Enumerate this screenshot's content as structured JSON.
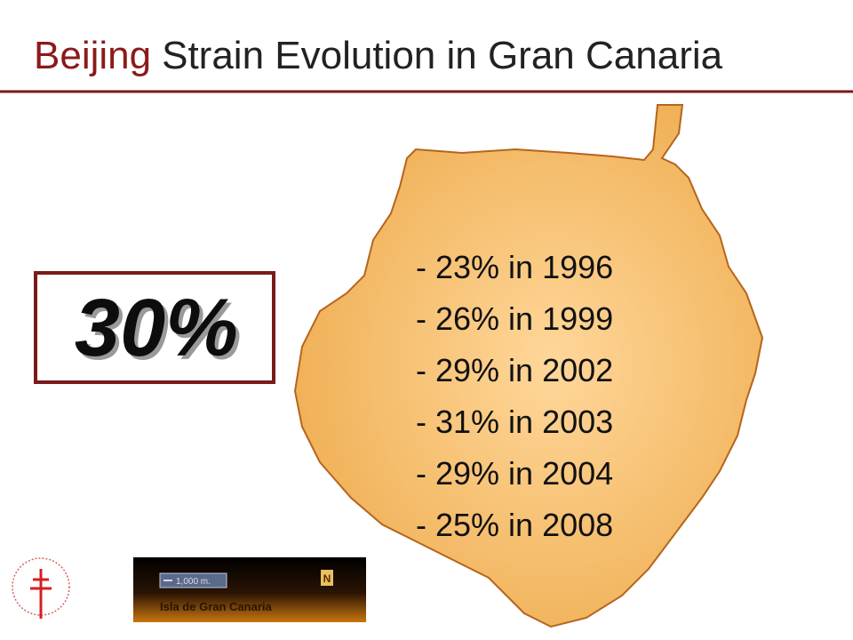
{
  "title": {
    "highlight": "Beijing",
    "rest": "Strain Evolution in Gran Canaria"
  },
  "callout": "30%",
  "list": [
    "- 23% in 1996",
    "- 26% in 1999",
    "- 29% in 2002",
    "- 31% in 2003",
    "- 29% in 2004",
    "- 25% in 2008"
  ],
  "map": {
    "scale": "1,000 m.",
    "north": "N",
    "caption": "Isla de Gran Canaria"
  }
}
